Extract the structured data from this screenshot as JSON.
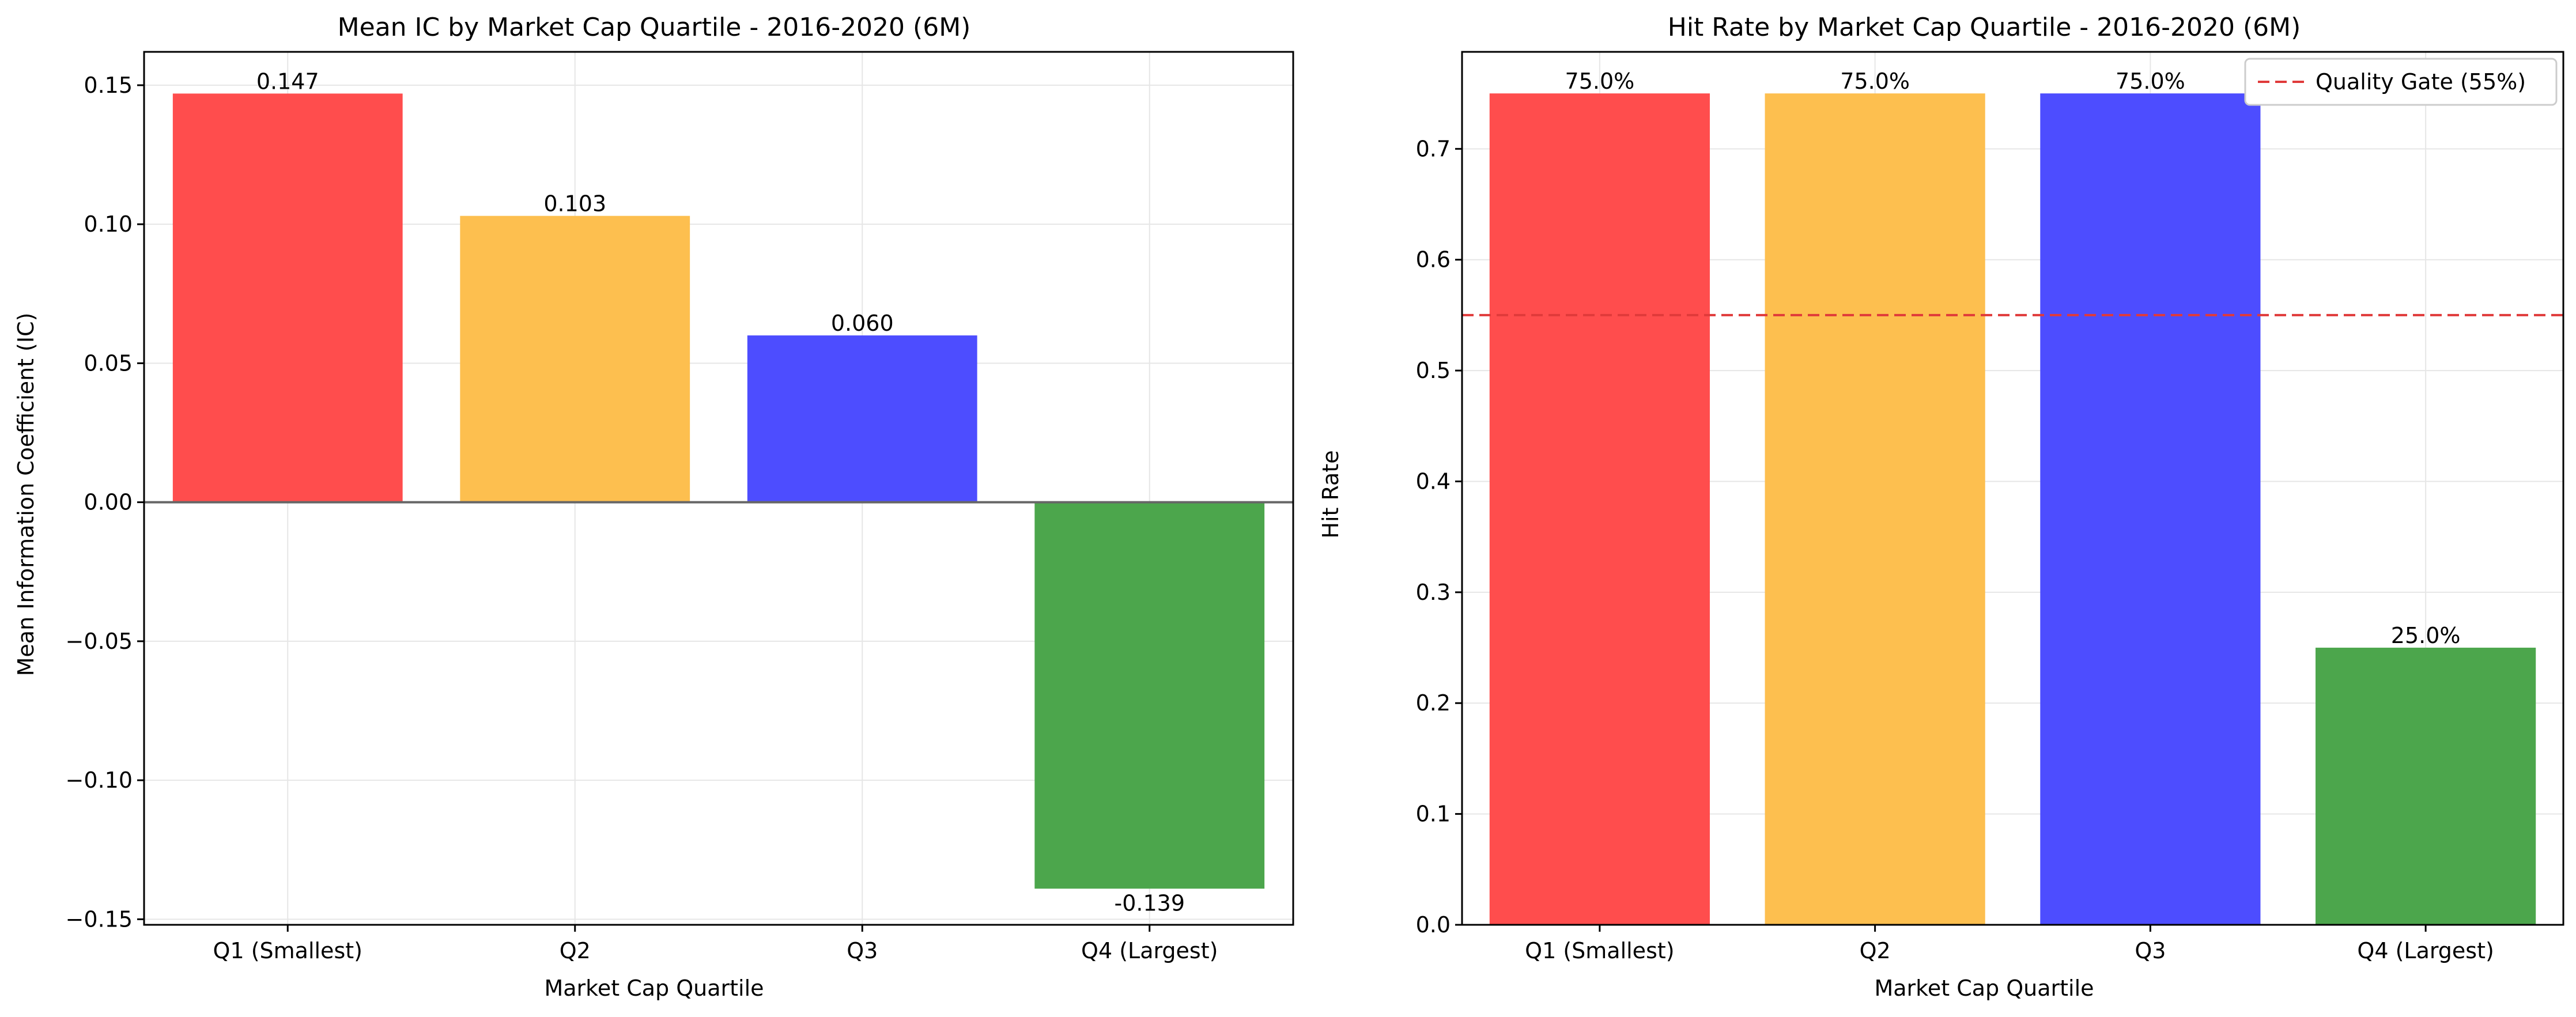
{
  "colors": {
    "q1": "#FF4D4D",
    "q2": "#FDBF4F",
    "q3": "#4D4DFF",
    "q4": "#4CA64C",
    "quality_gate_line": "#E03A3A",
    "grid": "#E6E6E6",
    "axis": "#000000",
    "zero_line": "#666666"
  },
  "chart_data": [
    {
      "type": "bar",
      "title": "Mean IC by Market Cap Quartile - 2016-2020 (6M)",
      "xlabel": "Market Cap Quartile",
      "ylabel": "Mean Information Coefficient (IC)",
      "categories": [
        "Q1 (Smallest)",
        "Q2",
        "Q3",
        "Q4 (Largest)"
      ],
      "values": [
        0.147,
        0.103,
        0.06,
        -0.139
      ],
      "data_labels": [
        "0.147",
        "0.103",
        "0.060",
        "-0.139"
      ],
      "colors": [
        "#FF4D4D",
        "#FDBF4F",
        "#4D4DFF",
        "#4CA64C"
      ],
      "ylim": [
        -0.152,
        0.162
      ],
      "yticks": [
        -0.15,
        -0.1,
        -0.05,
        0.0,
        0.05,
        0.1,
        0.15
      ],
      "ytick_labels": [
        "−0.15",
        "−0.10",
        "−0.05",
        "0.00",
        "0.05",
        "0.10",
        "0.15"
      ],
      "zero_line": true,
      "grid": true
    },
    {
      "type": "bar",
      "title": "Hit Rate by Market Cap Quartile - 2016-2020 (6M)",
      "xlabel": "Market Cap Quartile",
      "ylabel": "Hit Rate",
      "categories": [
        "Q1 (Smallest)",
        "Q2",
        "Q3",
        "Q4 (Largest)"
      ],
      "values": [
        0.75,
        0.75,
        0.75,
        0.25
      ],
      "data_labels": [
        "75.0%",
        "75.0%",
        "75.0%",
        "25.0%"
      ],
      "colors": [
        "#FF4D4D",
        "#FDBF4F",
        "#4D4DFF",
        "#4CA64C"
      ],
      "ylim": [
        0,
        0.7875
      ],
      "yticks": [
        0.0,
        0.1,
        0.2,
        0.3,
        0.4,
        0.5,
        0.6,
        0.7
      ],
      "ytick_labels": [
        "0.0",
        "0.1",
        "0.2",
        "0.3",
        "0.4",
        "0.5",
        "0.6",
        "0.7"
      ],
      "reference_line": {
        "value": 0.55,
        "label": "Quality Gate (55%)",
        "style": "dashed"
      },
      "legend": {
        "position": "top-right",
        "entries": [
          "Quality Gate (55%)"
        ]
      },
      "grid": true
    }
  ]
}
